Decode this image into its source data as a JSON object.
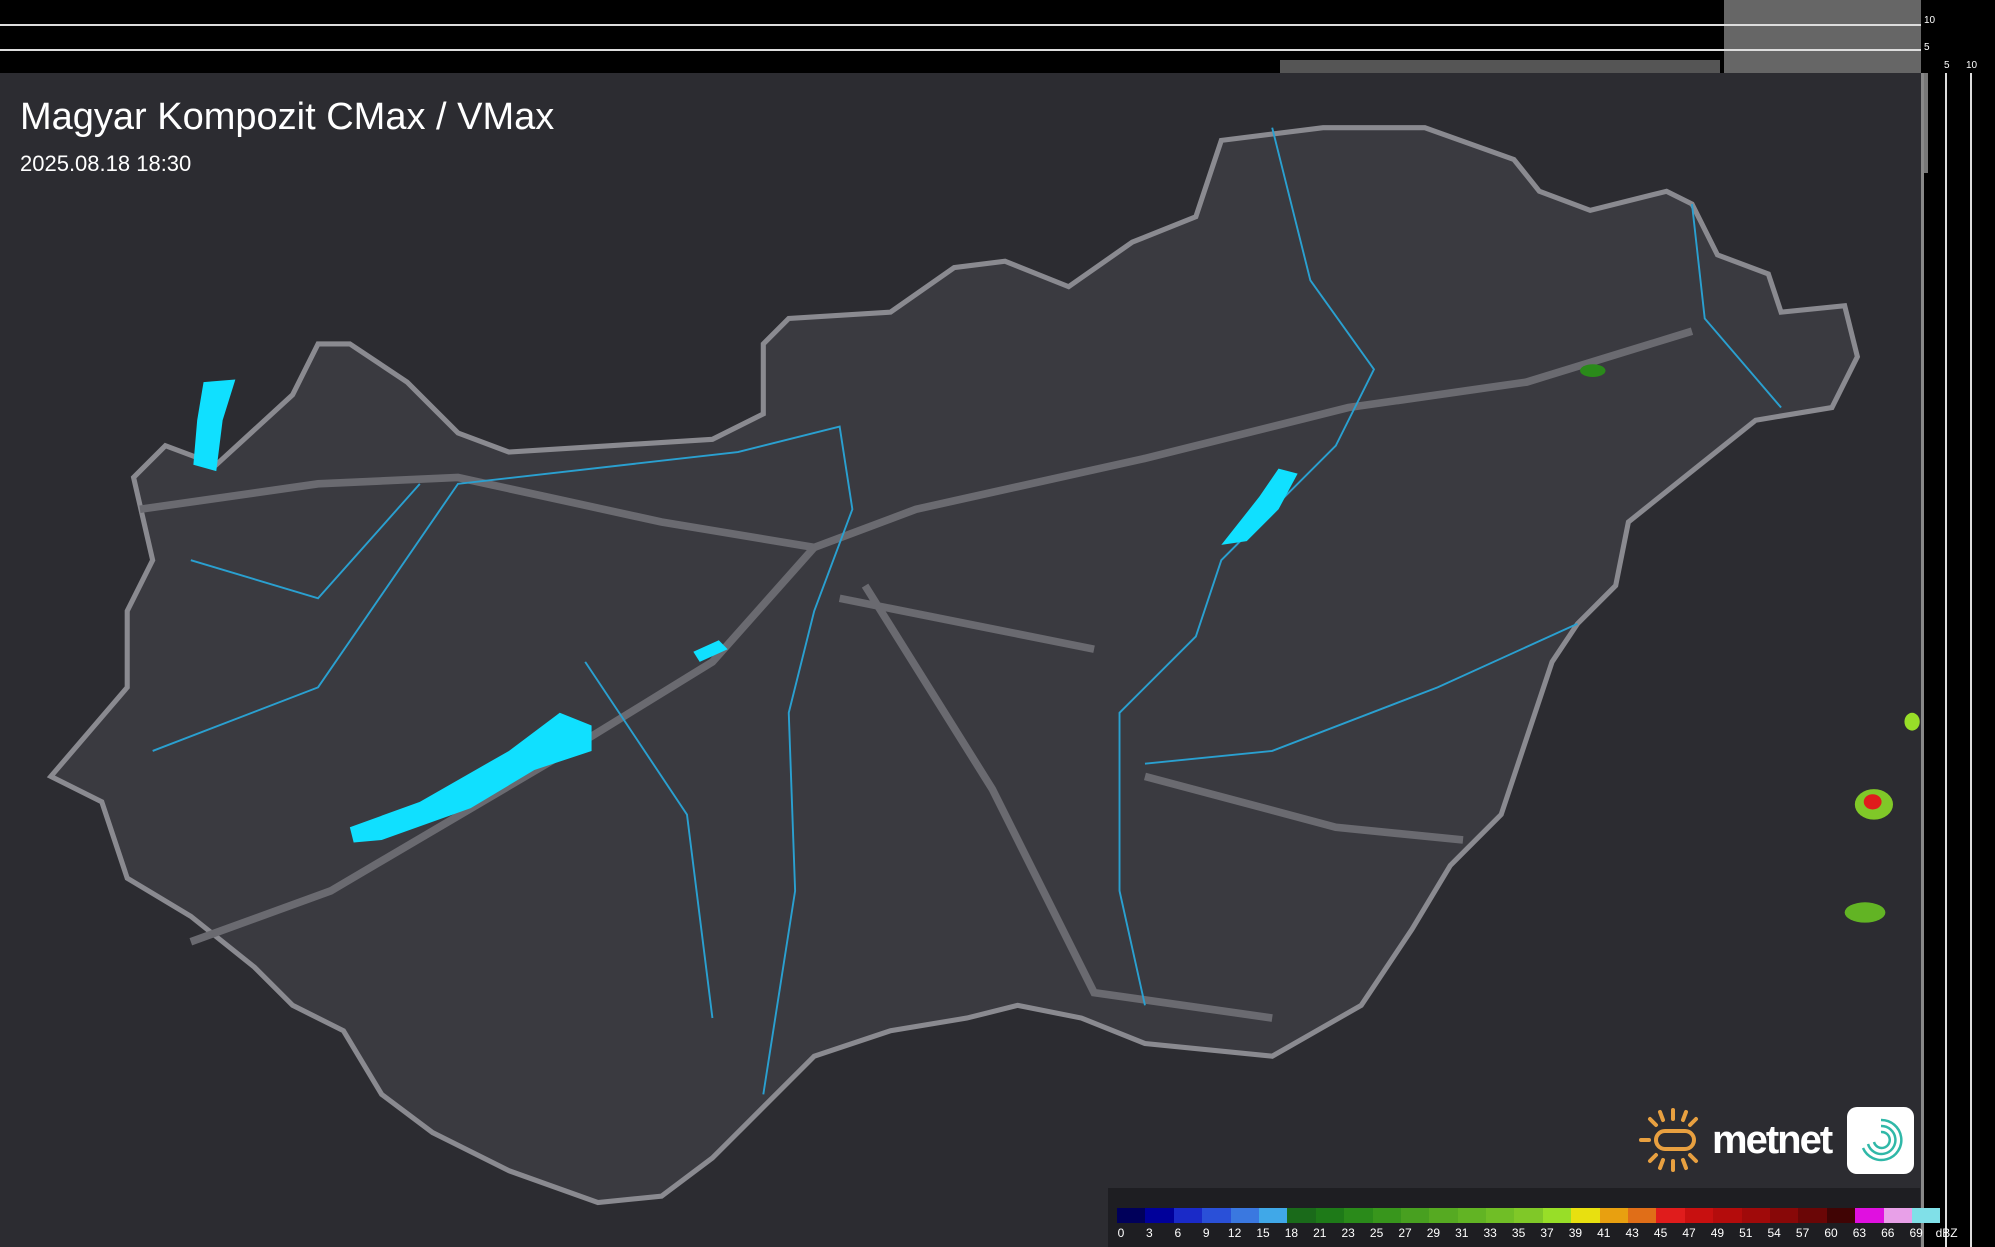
{
  "header": {
    "title": "Magyar Kompozit CMax / VMax",
    "timestamp": "2025.08.18 18:30"
  },
  "profile_axes": {
    "top_ticks": [
      "10",
      "5"
    ],
    "right_ticks": [
      "5",
      "10"
    ]
  },
  "brand": {
    "name": "metnet",
    "logo_icon": "sun-icon",
    "app_icon": "swirl-icon"
  },
  "legend": {
    "unit": "dBZ",
    "labels": [
      "0",
      "3",
      "6",
      "9",
      "12",
      "15",
      "18",
      "21",
      "23",
      "25",
      "27",
      "29",
      "31",
      "33",
      "35",
      "37",
      "39",
      "41",
      "43",
      "45",
      "47",
      "49",
      "51",
      "54",
      "57",
      "60",
      "63",
      "66",
      "69"
    ],
    "colors": [
      "#00005a",
      "#00009a",
      "#1a2ac8",
      "#2a50d8",
      "#3a78e0",
      "#40a8e8",
      "#1a6a1a",
      "#1e7a18",
      "#2a8a1a",
      "#38961c",
      "#48a020",
      "#56aa22",
      "#62b424",
      "#70be26",
      "#80c828",
      "#98de28",
      "#e8e010",
      "#e8a010",
      "#e06e18",
      "#e01c1c",
      "#c81010",
      "#b40c0c",
      "#a00a0a",
      "#880808",
      "#6a0606",
      "#400404",
      "#e010e0",
      "#e8a0e8",
      "#80e0e8"
    ]
  },
  "colors": {
    "background": "#2c2c31",
    "country": "#3a3a40",
    "border": "#8a8a90",
    "rivers": "#2aa0d0",
    "lakes": "#10e0ff"
  }
}
